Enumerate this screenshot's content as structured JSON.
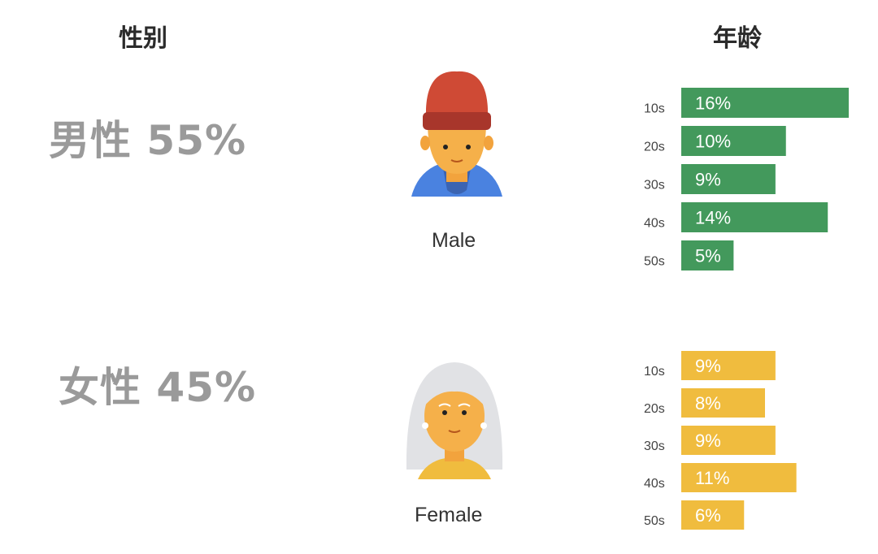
{
  "headers": {
    "gender": "性别",
    "age": "年龄"
  },
  "male": {
    "summary": "男性 55%",
    "caption": "Male"
  },
  "female": {
    "summary": "女性 45%",
    "caption": "Female"
  },
  "colors": {
    "male_bar": "#43995c",
    "female_bar": "#f0bc3e",
    "tick": "#444444",
    "bar_label": "#ffffff"
  },
  "chart_data": [
    {
      "type": "bar",
      "orientation": "horizontal",
      "title": "",
      "categories": [
        "10s",
        "20s",
        "30s",
        "40s",
        "50s"
      ],
      "values": [
        16,
        10,
        9,
        14,
        5
      ],
      "labels": [
        "16%",
        "10%",
        "9%",
        "14%",
        "5%"
      ],
      "unit": "%",
      "xlim": [
        0,
        16
      ],
      "grid": false
    },
    {
      "type": "bar",
      "orientation": "horizontal",
      "title": "",
      "categories": [
        "10s",
        "20s",
        "30s",
        "40s",
        "50s"
      ],
      "values": [
        9,
        8,
        9,
        11,
        6
      ],
      "labels": [
        "9%",
        "8%",
        "9%",
        "11%",
        "6%"
      ],
      "unit": "%",
      "xlim": [
        0,
        16
      ],
      "grid": false
    }
  ]
}
